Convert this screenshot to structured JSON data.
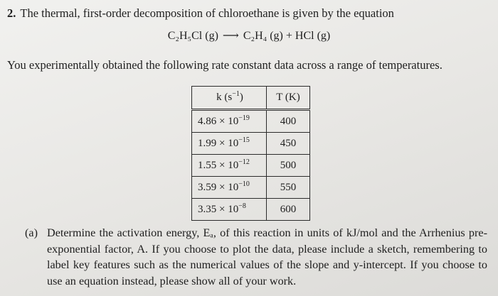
{
  "question": {
    "number": "2.",
    "stem": "The thermal, first-order decomposition of chloroethane is given by the equation",
    "reaction": {
      "reactant": "C₂H₅Cl (g)",
      "arrow": "⟶",
      "products": "C₂H₄ (g) + HCl (g)"
    },
    "intro": "You experimentally obtained the following rate constant data across a range of temperatures."
  },
  "table": {
    "headers": {
      "k": "k (s",
      "k_exp": "−1",
      "k_close": ")",
      "T": "T (K)"
    },
    "rows": [
      {
        "k_mant": "4.86 × 10",
        "k_exp": "−19",
        "T": "400"
      },
      {
        "k_mant": "1.99 × 10",
        "k_exp": "−15",
        "T": "450"
      },
      {
        "k_mant": "1.55 × 10",
        "k_exp": "−12",
        "T": "500"
      },
      {
        "k_mant": "3.59 × 10",
        "k_exp": "−10",
        "T": "550"
      },
      {
        "k_mant": "3.35 × 10",
        "k_exp": "−8",
        "T": "600"
      }
    ]
  },
  "part_a": {
    "label": "(a)",
    "text": "Determine the activation energy, Eₐ, of this reaction in units of kJ/mol and the Arrhenius pre-exponential factor, A. If you choose to plot the data, please include a sketch, remembering to label key features such as the numerical values of the slope and y-intercept. If you choose to use an equation instead, please show all of your work."
  }
}
